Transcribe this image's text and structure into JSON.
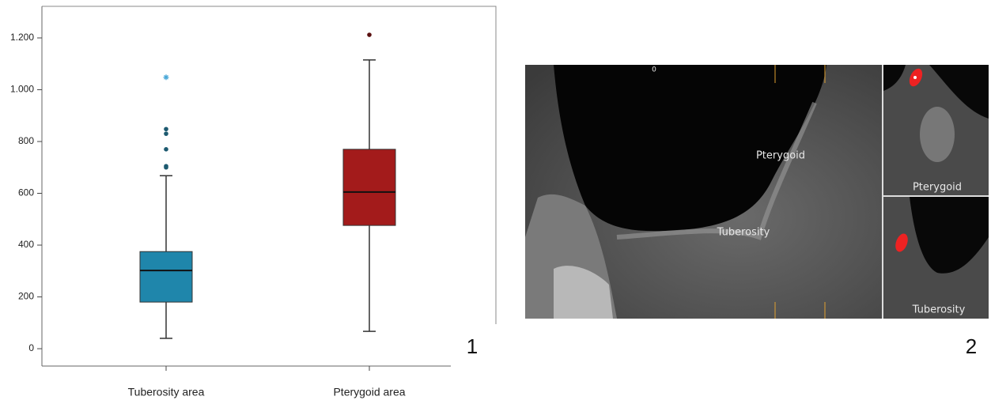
{
  "chart_data": {
    "type": "box",
    "categories": [
      "Tuberosity area",
      "Pterygoid area"
    ],
    "boxes": [
      {
        "color": "#1f86ab",
        "whisker_low": 40,
        "q1": 180,
        "median": 302,
        "q3": 375,
        "whisker_high": 668,
        "outliers": [
          700,
          705,
          770,
          830,
          848
        ],
        "extremes": [
          1048
        ]
      },
      {
        "color": "#a31b1b",
        "whisker_low": 67,
        "q1": 476,
        "median": 605,
        "q3": 770,
        "whisker_high": 1115,
        "outliers": [
          1212
        ],
        "extremes": []
      }
    ],
    "ylim": [
      -67,
      1322
    ],
    "yticks": [
      0,
      200,
      400,
      600,
      800,
      {
        "value": 1000,
        "label": "1.000"
      },
      {
        "value": 1200,
        "label": "1.200"
      }
    ]
  },
  "panel_labels": [
    "1",
    "2"
  ],
  "image": {
    "scale_label": "0",
    "main_labels": [
      "Pterygoid",
      "Tuberosity"
    ],
    "inset_labels": [
      "Pterygoid",
      "Tuberosity"
    ]
  }
}
